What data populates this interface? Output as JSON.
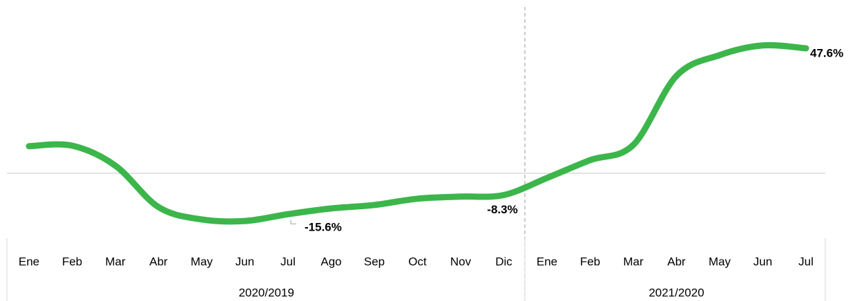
{
  "chart_data": {
    "type": "line",
    "categories": [
      "Ene",
      "Feb",
      "Mar",
      "Abr",
      "May",
      "Jun",
      "Jul",
      "Ago",
      "Sep",
      "Oct",
      "Nov",
      "Dic",
      "Ene",
      "Feb",
      "Mar",
      "Abr",
      "May",
      "Jun",
      "Jul"
    ],
    "groups": [
      {
        "label": "2020/2019",
        "count": 12
      },
      {
        "label": "2021/2020",
        "count": 7
      }
    ],
    "series": [
      {
        "color": "#3cb64b",
        "values": [
          10.3,
          10.5,
          2.9,
          -12.9,
          -17.6,
          -18.2,
          -15.6,
          -13.4,
          -12.1,
          -9.7,
          -8.9,
          -8.3,
          -1.8,
          5.0,
          10.8,
          37.1,
          45.0,
          48.7,
          47.6
        ],
        "value_labels": [
          null,
          null,
          null,
          null,
          null,
          null,
          "-15.6%",
          null,
          null,
          null,
          null,
          "-8.3%",
          null,
          null,
          null,
          null,
          null,
          null,
          "47.6%"
        ]
      }
    ],
    "ylim": [
      -25,
      66
    ]
  }
}
